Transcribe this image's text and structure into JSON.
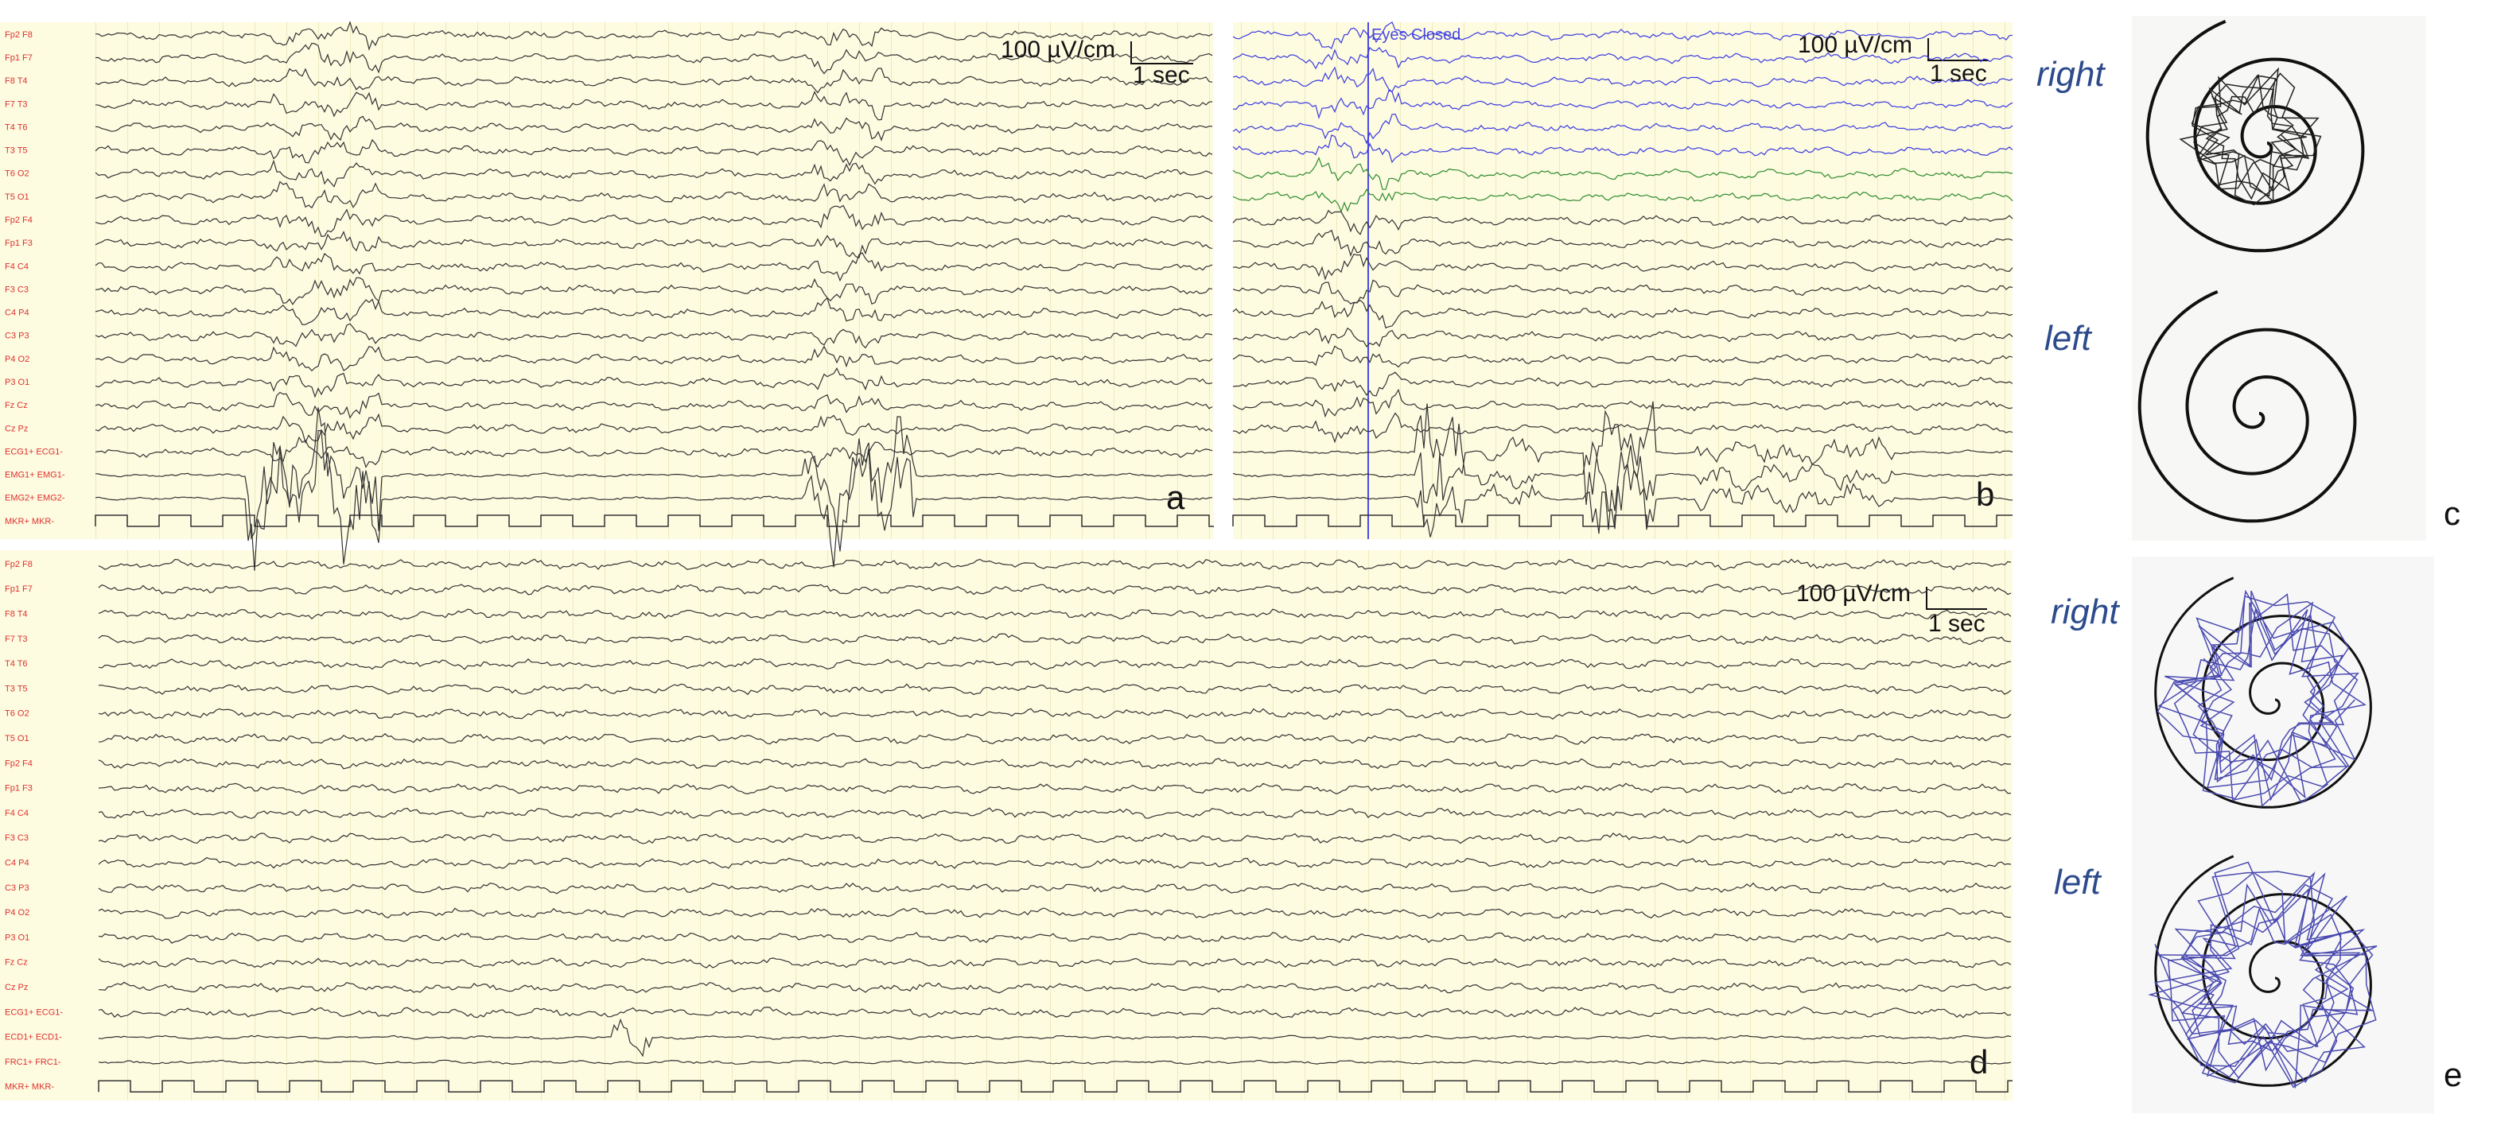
{
  "panels": {
    "a": {
      "letter": "a",
      "channels": [
        "Fp2 F8",
        "Fp1 F7",
        "F8 T4",
        "F7 T3",
        "T4 T6",
        "T3 T5",
        "T6 O2",
        "T5 O1",
        "Fp2 F4",
        "Fp1 F3",
        "F4 C4",
        "F3 C3",
        "C4 P4",
        "C3 P3",
        "P4 O2",
        "P3 O1",
        "Fz Cz",
        "Cz Pz",
        "ECG1+ ECG1-",
        "EMG1+ EMG1-",
        "EMG2+ EMG2-",
        "MKR+ MKR-"
      ],
      "scale": {
        "amplitude": "100 µV/cm",
        "time": "1 sec"
      }
    },
    "b": {
      "letter": "b",
      "annotation": "Eyes Closed",
      "scale": {
        "amplitude": "100 µV/cm",
        "time": "1 sec"
      }
    },
    "c": {
      "letter": "c",
      "labels": [
        "right",
        "left"
      ]
    },
    "d": {
      "letter": "d",
      "channels": [
        "Fp2 F8",
        "Fp1 F7",
        "F8 T4",
        "F7 T3",
        "T4 T6",
        "T3 T5",
        "T6 O2",
        "T5 O1",
        "Fp2 F4",
        "Fp1 F3",
        "F4 C4",
        "F3 C3",
        "C4 P4",
        "C3 P3",
        "P4 O2",
        "P3 O1",
        "Fz Cz",
        "Cz Pz",
        "ECG1+ ECG1-",
        "ECD1+ ECD1-",
        "FRC1+ FRC1-",
        "MKR+ MKR-"
      ],
      "scale": {
        "amplitude": "100 µV/cm",
        "time": "1 sec"
      }
    },
    "e": {
      "letter": "e",
      "labels": [
        "right",
        "left"
      ]
    }
  }
}
